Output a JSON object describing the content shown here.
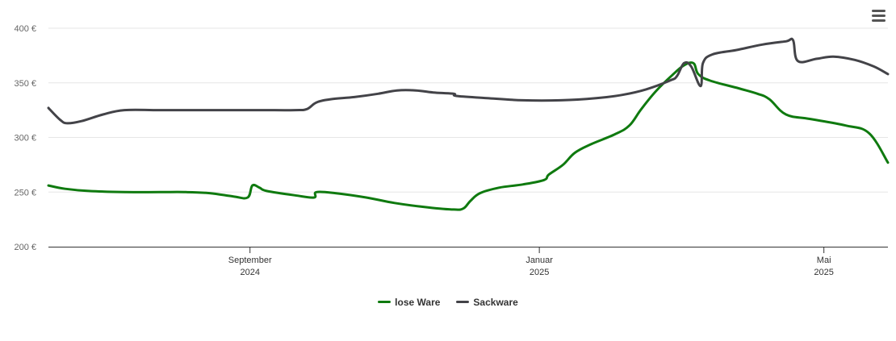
{
  "chart_data": {
    "type": "line",
    "title": "",
    "xlabel": "",
    "ylabel": "",
    "ylim": [
      200,
      400
    ],
    "y_ticks": [
      200,
      250,
      300,
      350,
      400
    ],
    "y_tick_suffix": " €",
    "grid": true,
    "x_range": [
      "2024-06-08",
      "2025-05-28"
    ],
    "x_ticks": [
      {
        "date": "2024-09-01",
        "label": "September",
        "sublabel": "2024"
      },
      {
        "date": "2025-01-01",
        "label": "Januar",
        "sublabel": "2025"
      },
      {
        "date": "2025-05-01",
        "label": "Mai",
        "sublabel": "2025"
      }
    ],
    "legend_position": "bottom-center",
    "series": [
      {
        "name": "lose Ware",
        "color": "#0f7a0f",
        "points": [
          [
            "2024-06-08",
            256
          ],
          [
            "2024-06-15",
            253
          ],
          [
            "2024-06-25",
            251
          ],
          [
            "2024-07-10",
            250
          ],
          [
            "2024-07-25",
            250
          ],
          [
            "2024-08-05",
            250
          ],
          [
            "2024-08-15",
            249
          ],
          [
            "2024-08-25",
            246
          ],
          [
            "2024-08-31",
            245
          ],
          [
            "2024-09-02",
            256
          ],
          [
            "2024-09-05",
            254
          ],
          [
            "2024-09-08",
            251
          ],
          [
            "2024-09-20",
            247
          ],
          [
            "2024-09-28",
            245
          ],
          [
            "2024-09-29",
            250
          ],
          [
            "2024-10-07",
            249
          ],
          [
            "2024-10-20",
            245
          ],
          [
            "2024-11-01",
            240
          ],
          [
            "2024-11-15",
            236
          ],
          [
            "2024-11-26",
            234
          ],
          [
            "2024-11-30",
            235
          ],
          [
            "2024-12-03",
            242
          ],
          [
            "2024-12-07",
            249
          ],
          [
            "2024-12-15",
            254
          ],
          [
            "2024-12-25",
            257
          ],
          [
            "2025-01-03",
            261
          ],
          [
            "2025-01-05",
            266
          ],
          [
            "2025-01-11",
            275
          ],
          [
            "2025-01-16",
            286
          ],
          [
            "2025-01-23",
            294
          ],
          [
            "2025-02-02",
            303
          ],
          [
            "2025-02-08",
            311
          ],
          [
            "2025-02-13",
            326
          ],
          [
            "2025-02-19",
            342
          ],
          [
            "2025-02-26",
            357
          ],
          [
            "2025-03-03",
            366
          ],
          [
            "2025-03-07",
            368
          ],
          [
            "2025-03-09",
            358
          ],
          [
            "2025-03-14",
            352
          ],
          [
            "2025-03-26",
            345
          ],
          [
            "2025-04-03",
            340
          ],
          [
            "2025-04-08",
            335
          ],
          [
            "2025-04-15",
            321
          ],
          [
            "2025-04-25",
            317
          ],
          [
            "2025-05-10",
            311
          ],
          [
            "2025-05-20",
            304
          ],
          [
            "2025-05-28",
            277
          ]
        ]
      },
      {
        "name": "Sackware",
        "color": "#434348",
        "points": [
          [
            "2024-06-08",
            327
          ],
          [
            "2024-06-13",
            316
          ],
          [
            "2024-06-16",
            313
          ],
          [
            "2024-06-22",
            315
          ],
          [
            "2024-07-01",
            321
          ],
          [
            "2024-07-10",
            325
          ],
          [
            "2024-07-25",
            325
          ],
          [
            "2024-08-15",
            325
          ],
          [
            "2024-09-05",
            325
          ],
          [
            "2024-09-20",
            325
          ],
          [
            "2024-09-25",
            326
          ],
          [
            "2024-09-29",
            332
          ],
          [
            "2024-10-05",
            335
          ],
          [
            "2024-10-15",
            337
          ],
          [
            "2024-10-25",
            340
          ],
          [
            "2024-11-02",
            343
          ],
          [
            "2024-11-10",
            343
          ],
          [
            "2024-11-18",
            341
          ],
          [
            "2024-11-26",
            340
          ],
          [
            "2024-11-27",
            338
          ],
          [
            "2024-12-10",
            336
          ],
          [
            "2024-12-25",
            334
          ],
          [
            "2025-01-10",
            334
          ],
          [
            "2025-01-25",
            336
          ],
          [
            "2025-02-05",
            339
          ],
          [
            "2025-02-15",
            344
          ],
          [
            "2025-02-25",
            352
          ],
          [
            "2025-02-28",
            356
          ],
          [
            "2025-03-03",
            368
          ],
          [
            "2025-03-06",
            365
          ],
          [
            "2025-03-10",
            347
          ],
          [
            "2025-03-11",
            368
          ],
          [
            "2025-03-15",
            376
          ],
          [
            "2025-03-25",
            380
          ],
          [
            "2025-04-05",
            385
          ],
          [
            "2025-04-15",
            388
          ],
          [
            "2025-04-18",
            389
          ],
          [
            "2025-04-20",
            370
          ],
          [
            "2025-04-28",
            372
          ],
          [
            "2025-05-05",
            374
          ],
          [
            "2025-05-14",
            371
          ],
          [
            "2025-05-22",
            365
          ],
          [
            "2025-05-28",
            358
          ]
        ]
      }
    ]
  },
  "ui": {
    "menu_icon": "hamburger-menu-icon"
  }
}
